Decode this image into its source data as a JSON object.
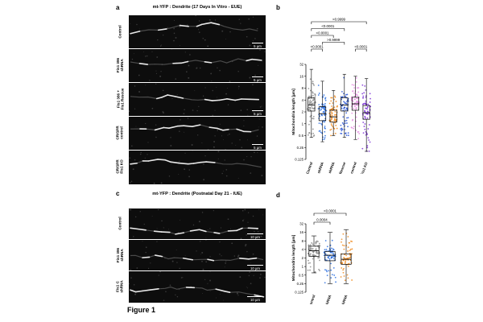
{
  "figure_label": "Figure 1",
  "panels": {
    "a": {
      "letter": "a",
      "title": "mt-YFP : Dendrite (17 Days In Vitro - EUE)",
      "rows": [
        {
          "label": "Control",
          "scale": "5 µm"
        },
        {
          "label": "Fis1 386\nshRNA",
          "scale": "5 µm"
        },
        {
          "label": "Fis1 386 +\nFis1 Rescue",
          "scale": "5 µm"
        },
        {
          "label": "CRISPR\ncontrol",
          "scale": "5 µm"
        },
        {
          "label": "CRISPR\nFis1 KO",
          "scale": ""
        }
      ]
    },
    "b": {
      "letter": "b"
    },
    "c": {
      "letter": "c",
      "title": "mt-YFP : Dendrite (Postnatal Day 21 - IUE)",
      "rows": [
        {
          "label": "Control",
          "scale": "10 µm"
        },
        {
          "label": "Fis1 386\nshRNA",
          "scale": "10 µm"
        },
        {
          "label": "Fis1 C\nshRNA",
          "scale": "10 µm"
        }
      ]
    },
    "d": {
      "letter": "d"
    }
  },
  "chart_data": [
    {
      "panel": "b",
      "type": "box",
      "ylabel": "Mitochondria length [µm]",
      "yscale": "log2",
      "yticks": [
        0.125,
        0.25,
        0.5,
        1,
        2,
        4,
        8,
        16,
        32
      ],
      "yticklabels": [
        "0.125",
        "0.25",
        "0.5",
        "1",
        "2",
        "4",
        "8",
        "16",
        "32"
      ],
      "ylim": [
        0.125,
        32
      ],
      "categories": [
        "Control",
        "Fis1 386 shRNA",
        "Fis1 C shRNA",
        "Fis1 Rescue",
        "CRISPR control",
        "CRISPR Fis1 KO"
      ],
      "series": [
        {
          "color": "#8c8c8c",
          "q1": 2.1,
          "median": 3.0,
          "q3": 4.5,
          "whisker_low": 0.45,
          "whisker_high": 24
        },
        {
          "color": "#2a6fe0",
          "q1": 1.2,
          "median": 1.8,
          "q3": 2.7,
          "whisker_low": 0.35,
          "whisker_high": 12
        },
        {
          "color": "#f08a1c",
          "q1": 1.1,
          "median": 1.5,
          "q3": 2.2,
          "whisker_low": 0.5,
          "whisker_high": 7
        },
        {
          "color": "#2a56d6",
          "q1": 2.1,
          "median": 3.0,
          "q3": 4.6,
          "whisker_low": 0.45,
          "whisker_high": 18
        },
        {
          "color": "#e58be0",
          "q1": 2.2,
          "median": 3.2,
          "q3": 4.7,
          "whisker_low": 0.4,
          "whisker_high": 16
        },
        {
          "color": "#7a2fd6",
          "q1": 1.3,
          "median": 1.9,
          "q3": 2.9,
          "whisker_low": 0.2,
          "whisker_high": 14
        }
      ],
      "annotations": [
        {
          "from": 0,
          "to": 5,
          "text": ">0.9999",
          "level": 7
        },
        {
          "from": 0,
          "to": 3,
          "text": "<0.0001",
          "level": 6
        },
        {
          "from": 0,
          "to": 2,
          "text": "<0.0001",
          "level": 5
        },
        {
          "from": 1,
          "to": 3,
          "text": ">0.9999",
          "level": 4
        },
        {
          "from": 0,
          "to": 1,
          "text": "<0.0001",
          "level": 3
        },
        {
          "from": 4,
          "to": 5,
          "text": "<0.0001",
          "level": 3
        }
      ]
    },
    {
      "panel": "d",
      "type": "box",
      "ylabel": "Mitochondria length [µm]",
      "yscale": "log2",
      "yticks": [
        0.125,
        0.25,
        0.5,
        1,
        2,
        4,
        8,
        16,
        32
      ],
      "yticklabels": [
        "0.125",
        "0.25",
        "0.5",
        "1",
        "2",
        "4",
        "8",
        "16",
        "32"
      ],
      "ylim": [
        0.125,
        32
      ],
      "categories": [
        "Control",
        "Fis1 386 shRNA",
        "Fis1 C shRNA"
      ],
      "series": [
        {
          "color": "#8c8c8c",
          "q1": 2.3,
          "median": 3.6,
          "q3": 5.2,
          "whisker_low": 0.6,
          "whisker_high": 12
        },
        {
          "color": "#2a6fe0",
          "q1": 1.6,
          "median": 2.5,
          "q3": 3.4,
          "whisker_low": 0.25,
          "whisker_high": 16
        },
        {
          "color": "#f08a1c",
          "q1": 1.2,
          "median": 1.8,
          "q3": 2.8,
          "whisker_low": 0.25,
          "whisker_high": 20
        }
      ],
      "annotations": [
        {
          "from": 0,
          "to": 2,
          "text": "<0.0001",
          "level": 2
        },
        {
          "from": 0,
          "to": 1,
          "text": "0.0004",
          "level": 1
        }
      ]
    }
  ]
}
